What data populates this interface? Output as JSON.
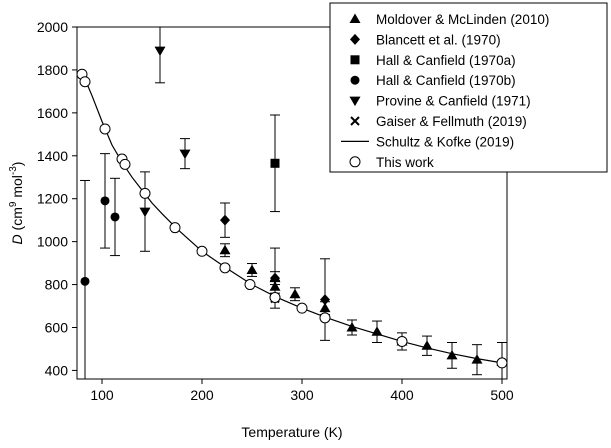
{
  "chart_data": {
    "type": "scatter",
    "xlabel": "Temperature (K)",
    "ylabel": {
      "symbol": "D",
      "unit_open": " (cm",
      "unit_exp1": "9",
      "unit_mid": " mol",
      "unit_exp2": "-3",
      "unit_close": ")"
    },
    "xlim": [
      75,
      505
    ],
    "ylim": [
      360,
      2000
    ],
    "xticks": [
      100,
      200,
      300,
      400,
      500
    ],
    "yticks": [
      400,
      600,
      800,
      1000,
      1200,
      1400,
      1600,
      1800,
      2000
    ],
    "legend_position": "top-right",
    "series": [
      {
        "name": "Moldover & McLinden (2010)",
        "marker": "triangle-up",
        "points": [
          {
            "x": 223,
            "y": 960,
            "err": 30
          },
          {
            "x": 250,
            "y": 868,
            "err": 30
          },
          {
            "x": 273,
            "y": 830,
            "err": 30
          },
          {
            "x": 273,
            "y": 790,
            "err": 30
          },
          {
            "x": 293,
            "y": 755,
            "err": 30
          },
          {
            "x": 323,
            "y": 690,
            "err": 30
          },
          {
            "x": 350,
            "y": 600,
            "err": 35
          },
          {
            "x": 375,
            "y": 580,
            "err": 50
          },
          {
            "x": 400,
            "y": 535,
            "err": 40
          },
          {
            "x": 425,
            "y": 515,
            "err": 45
          },
          {
            "x": 450,
            "y": 470,
            "err": 60
          },
          {
            "x": 475,
            "y": 450,
            "err": 70
          },
          {
            "x": 500,
            "y": 440,
            "err": 90
          }
        ]
      },
      {
        "name": "Blancett et al. (1970)",
        "marker": "diamond",
        "points": [
          {
            "x": 223,
            "y": 1100,
            "err": 80
          },
          {
            "x": 273,
            "y": 830,
            "err": 140
          },
          {
            "x": 323,
            "y": 730,
            "err": 190
          }
        ]
      },
      {
        "name": "Hall & Canfield (1970a)",
        "marker": "square",
        "points": [
          {
            "x": 273,
            "y": 1365,
            "err": 225
          }
        ]
      },
      {
        "name": "Hall & Canfield (1970b)",
        "marker": "circle-filled",
        "points": [
          {
            "x": 83,
            "y": 815,
            "err": 470
          },
          {
            "x": 103,
            "y": 1190,
            "err": 220
          },
          {
            "x": 113,
            "y": 1115,
            "err": 180
          }
        ]
      },
      {
        "name": "Provine & Canfield (1971)",
        "marker": "triangle-down",
        "points": [
          {
            "x": 143,
            "y": 1140,
            "err": 185
          },
          {
            "x": 158,
            "y": 1890,
            "err": 150
          },
          {
            "x": 183,
            "y": 1410,
            "err": 70
          }
        ]
      },
      {
        "name": "Gaiser & Fellmuth (2019)",
        "marker": "cross",
        "points": [
          {
            "x": 273,
            "y": 735,
            "err": 0
          }
        ]
      },
      {
        "name": "Schultz & Kofke (2019)",
        "marker": "line",
        "curve": [
          {
            "x": 80,
            "y": 1795
          },
          {
            "x": 85,
            "y": 1735
          },
          {
            "x": 90,
            "y": 1680
          },
          {
            "x": 100,
            "y": 1560
          },
          {
            "x": 110,
            "y": 1450
          },
          {
            "x": 120,
            "y": 1370
          },
          {
            "x": 130,
            "y": 1300
          },
          {
            "x": 140,
            "y": 1240
          },
          {
            "x": 150,
            "y": 1180
          },
          {
            "x": 160,
            "y": 1130
          },
          {
            "x": 175,
            "y": 1060
          },
          {
            "x": 200,
            "y": 955
          },
          {
            "x": 225,
            "y": 875
          },
          {
            "x": 250,
            "y": 800
          },
          {
            "x": 275,
            "y": 740
          },
          {
            "x": 300,
            "y": 690
          },
          {
            "x": 325,
            "y": 645
          },
          {
            "x": 350,
            "y": 605
          },
          {
            "x": 375,
            "y": 570
          },
          {
            "x": 400,
            "y": 535
          },
          {
            "x": 425,
            "y": 505
          },
          {
            "x": 450,
            "y": 478
          },
          {
            "x": 475,
            "y": 455
          },
          {
            "x": 500,
            "y": 435
          }
        ]
      },
      {
        "name": "This work",
        "marker": "circle-open",
        "points": [
          {
            "x": 80,
            "y": 1780
          },
          {
            "x": 83,
            "y": 1745
          },
          {
            "x": 103,
            "y": 1525
          },
          {
            "x": 120,
            "y": 1385
          },
          {
            "x": 123,
            "y": 1360
          },
          {
            "x": 143,
            "y": 1225
          },
          {
            "x": 173,
            "y": 1065
          },
          {
            "x": 200,
            "y": 955
          },
          {
            "x": 223,
            "y": 878
          },
          {
            "x": 248,
            "y": 800
          },
          {
            "x": 273,
            "y": 740
          },
          {
            "x": 300,
            "y": 690
          },
          {
            "x": 323,
            "y": 645
          },
          {
            "x": 400,
            "y": 535
          },
          {
            "x": 500,
            "y": 435
          }
        ]
      }
    ]
  }
}
